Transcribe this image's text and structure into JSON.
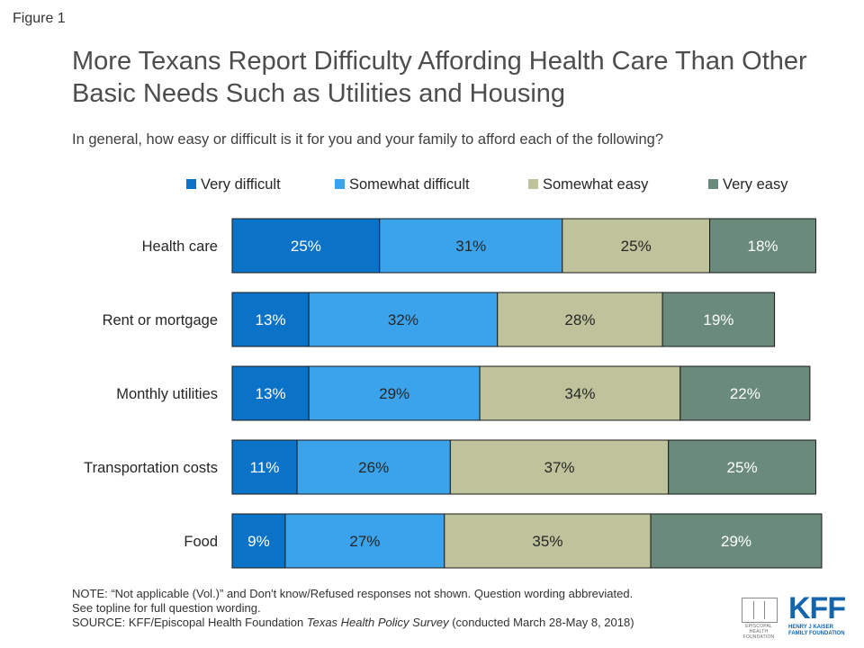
{
  "figure_label": "Figure 1",
  "chart_data": {
    "type": "bar",
    "orientation": "horizontal",
    "stacked": true,
    "title": "More Texans Report Difficulty Affording Health Care Than Other Basic Needs Such as Utilities and Housing",
    "subtitle": "In general, how easy or difficult is it for you and your family to afford each of the following?",
    "categories": [
      "Health care",
      "Rent or mortgage",
      "Monthly utilities",
      "Transportation costs",
      "Food"
    ],
    "series": [
      {
        "name": "Very difficult",
        "color": "#0a73c7",
        "values": [
          25,
          13,
          13,
          11,
          9
        ]
      },
      {
        "name": "Somewhat difficult",
        "color": "#3ba3ec",
        "values": [
          31,
          32,
          29,
          26,
          27
        ]
      },
      {
        "name": "Somewhat easy",
        "color": "#bfc39b",
        "values": [
          25,
          28,
          34,
          37,
          35
        ]
      },
      {
        "name": "Very easy",
        "color": "#6a8b7b",
        "values": [
          18,
          19,
          22,
          25,
          29
        ]
      }
    ],
    "value_suffix": "%",
    "legend_position": "top",
    "grid": false
  },
  "notes": {
    "line1": "NOTE: “Not applicable (Vol.)” and Don't know/Refused responses not shown. Question wording abbreviated.",
    "line2": "See topline for full question wording.",
    "source_prefix": "SOURCE: KFF/Episcopal Health Foundation ",
    "source_italic": "Texas Health Policy Survey",
    "source_suffix": " (conducted March 28-May 8, 2018)"
  },
  "logos": {
    "ehf_text": "EPISCOPAL HEALTH FOUNDATION",
    "kff_mark": "KFF",
    "kff_text": "HENRY J KAISER FAMILY FOUNDATION"
  }
}
